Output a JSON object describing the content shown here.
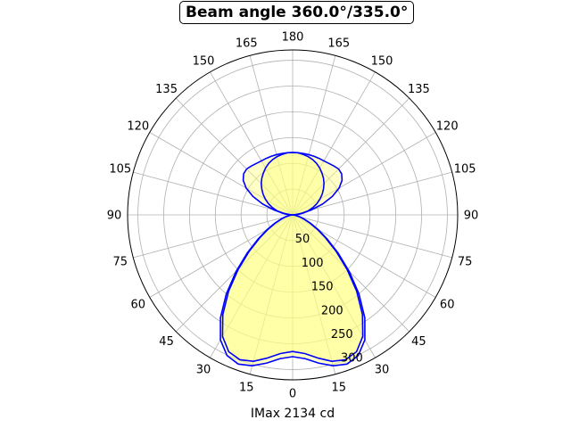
{
  "chart_data": {
    "type": "polar",
    "title": "Beam angle 360.0°/335.0°",
    "xlabel": "IMax 2134 cd",
    "angle_tick_labels_left": [
      "0",
      "15",
      "30",
      "45",
      "60",
      "75",
      "90",
      "105",
      "120",
      "135",
      "150",
      "165",
      "180"
    ],
    "angle_tick_labels_right": [
      "15",
      "30",
      "45",
      "60",
      "75",
      "90",
      "105",
      "120",
      "135",
      "150",
      "165"
    ],
    "radial_tick_labels": [
      "50",
      "100",
      "150",
      "200",
      "250",
      "300"
    ],
    "radial_ticks": [
      50,
      100,
      150,
      200,
      250,
      300
    ],
    "rlim": [
      0,
      320
    ],
    "zero_direction": "bottom",
    "grid": true,
    "fill_color": "#ffff80",
    "line_color": "#0000ff",
    "curves": [
      {
        "points": [
          [
            0,
            275
          ],
          [
            5,
            280
          ],
          [
            10,
            292
          ],
          [
            15,
            303
          ],
          [
            20,
            308
          ],
          [
            25,
            301
          ],
          [
            30,
            280
          ],
          [
            35,
            244
          ],
          [
            40,
            200
          ],
          [
            45,
            155
          ],
          [
            50,
            115
          ],
          [
            55,
            82
          ],
          [
            60,
            57
          ],
          [
            65,
            38
          ],
          [
            70,
            24
          ],
          [
            75,
            14
          ],
          [
            80,
            7
          ],
          [
            85,
            3
          ],
          [
            90,
            0
          ],
          [
            95,
            5
          ],
          [
            100,
            18
          ],
          [
            105,
            38
          ],
          [
            110,
            62
          ],
          [
            115,
            85
          ],
          [
            120,
            104
          ],
          [
            125,
            117
          ],
          [
            130,
            124
          ],
          [
            135,
            126
          ],
          [
            140,
            124
          ],
          [
            145,
            122
          ],
          [
            150,
            121
          ],
          [
            155,
            121
          ],
          [
            160,
            121
          ],
          [
            165,
            121
          ],
          [
            170,
            121
          ],
          [
            175,
            121
          ],
          [
            180,
            121
          ]
        ]
      },
      {
        "points": [
          [
            0,
            265
          ],
          [
            5,
            270
          ],
          [
            10,
            282
          ],
          [
            15,
            294
          ],
          [
            20,
            299
          ],
          [
            25,
            293
          ],
          [
            30,
            272
          ],
          [
            35,
            236
          ],
          [
            40,
            193
          ],
          [
            45,
            149
          ],
          [
            50,
            110
          ],
          [
            55,
            78
          ],
          [
            60,
            54
          ],
          [
            65,
            36
          ],
          [
            70,
            22
          ],
          [
            75,
            13
          ],
          [
            80,
            6
          ],
          [
            85,
            2
          ],
          [
            90,
            0
          ],
          [
            95,
            11
          ],
          [
            100,
            21
          ],
          [
            105,
            32
          ],
          [
            110,
            42
          ],
          [
            115,
            52
          ],
          [
            120,
            61
          ],
          [
            125,
            70
          ],
          [
            130,
            78
          ],
          [
            135,
            86
          ],
          [
            140,
            93
          ],
          [
            145,
            99
          ],
          [
            150,
            105
          ],
          [
            155,
            110
          ],
          [
            160,
            114
          ],
          [
            165,
            117
          ],
          [
            170,
            119
          ],
          [
            175,
            121
          ],
          [
            180,
            121
          ]
        ]
      }
    ]
  }
}
